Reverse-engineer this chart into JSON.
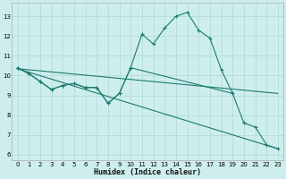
{
  "bg_color": "#ceeeed",
  "line_color": "#1c7a6e",
  "grid_color": "#aed8d8",
  "xlabel": "Humidex (Indice chaleur)",
  "xlim": [
    -0.5,
    23.5
  ],
  "ylim": [
    5.7,
    13.7
  ],
  "yticks": [
    6,
    7,
    8,
    9,
    10,
    11,
    12,
    13
  ],
  "xticks": [
    0,
    1,
    2,
    3,
    4,
    5,
    6,
    7,
    8,
    9,
    10,
    11,
    12,
    13,
    14,
    15,
    16,
    17,
    18,
    19,
    20,
    21,
    22,
    23
  ],
  "line1_x": [
    0,
    1,
    2,
    3,
    4,
    5,
    6,
    7,
    8,
    9,
    10,
    11,
    12,
    13,
    14,
    15,
    16,
    17,
    18,
    19
  ],
  "line1_y": [
    10.4,
    10.1,
    9.7,
    9.3,
    9.5,
    9.6,
    9.4,
    9.4,
    8.6,
    9.1,
    10.4,
    12.1,
    11.6,
    12.4,
    13.0,
    13.2,
    12.3,
    11.9,
    10.3,
    9.1
  ],
  "line2_x": [
    0,
    1,
    2,
    3,
    4,
    5,
    6,
    7,
    8,
    9,
    10,
    19,
    20,
    21,
    22,
    23
  ],
  "line2_y": [
    10.4,
    10.1,
    9.7,
    9.3,
    9.5,
    9.6,
    9.4,
    9.4,
    8.6,
    9.1,
    10.4,
    9.1,
    7.6,
    7.4,
    6.5,
    6.3
  ],
  "line3_x": [
    0,
    23
  ],
  "line3_y": [
    10.35,
    9.1
  ],
  "line4_x": [
    0,
    23
  ],
  "line4_y": [
    10.35,
    6.3
  ],
  "tick_fontsize": 5.0,
  "xlabel_fontsize": 6.0,
  "lw": 0.8
}
